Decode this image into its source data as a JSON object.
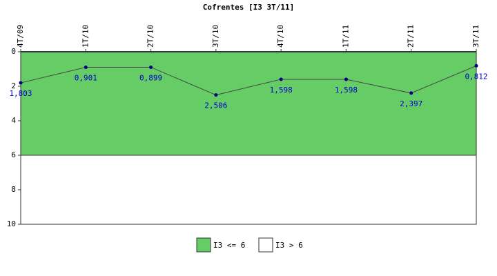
{
  "chart_data": {
    "type": "line",
    "title": "Cofrentes [I3 3T/11]",
    "categories": [
      "4T/09",
      "1T/10",
      "2T/10",
      "3T/10",
      "4T/10",
      "1T/11",
      "2T/11",
      "3T/11"
    ],
    "values": [
      1.803,
      0.901,
      0.899,
      2.506,
      1.598,
      1.598,
      2.397,
      0.812
    ],
    "value_labels": [
      "1,803",
      "0,901",
      "0,899",
      "2,506",
      "1,598",
      "1,598",
      "2,397",
      "0,812"
    ],
    "line_color": "#444444",
    "marker_color": "#000080",
    "label_color": "#0000cc",
    "bands": [
      {
        "name": "I3 <= 6",
        "color": "#66cc66",
        "from": 0,
        "to": 6
      },
      {
        "name": "I3 > 6",
        "color": "#ffffff",
        "from": 6,
        "to": 10
      }
    ],
    "ylim": [
      0,
      10
    ],
    "yticks": [
      0,
      2,
      4,
      6,
      8,
      10
    ],
    "y_inverted": true
  }
}
